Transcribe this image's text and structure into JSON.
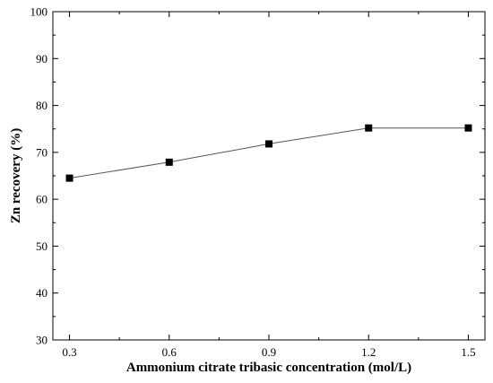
{
  "chart_data": {
    "type": "line",
    "xlabel": "Ammonium citrate tribasic concentration (mol/L)",
    "ylabel": "Zn recovery (%)",
    "x": [
      0.3,
      0.6,
      0.9,
      1.2,
      1.5
    ],
    "x_tick_labels": [
      "0.3",
      "0.6",
      "0.9",
      "1.2",
      "1.5"
    ],
    "y_tick_labels": [
      "30",
      "40",
      "50",
      "60",
      "70",
      "80",
      "90",
      "100"
    ],
    "xlim": [
      0.25,
      1.55
    ],
    "ylim": [
      30,
      100
    ],
    "grid": false,
    "legend": "none",
    "series": [
      {
        "values": [
          64.5,
          67.9,
          71.8,
          75.2,
          75.2
        ],
        "line_color": "#555555",
        "marker_color": "#000000",
        "marker": "square"
      }
    ]
  }
}
